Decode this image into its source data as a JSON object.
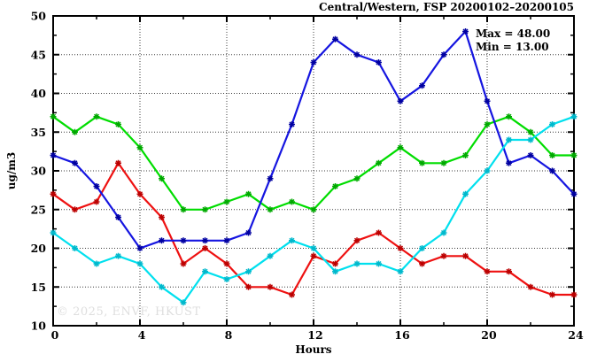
{
  "title": "Central/Western, FSP 20200102–20200105",
  "annotation": {
    "max_label": "Max = 48.00",
    "min_label": "Min = 13.00"
  },
  "watermark": "© 2025, ENVF, HKUST",
  "colors": {
    "foreground": "#000000",
    "background": "#ffffff",
    "grid": "#3a3a3a",
    "watermark_text": "#dedede"
  },
  "chart_data": {
    "type": "line",
    "title": "Central/Western, FSP 20200102–20200105",
    "xlabel": "Hours",
    "ylabel": "ug/m3",
    "xlim": [
      0,
      24
    ],
    "ylim": [
      10,
      50
    ],
    "grid": true,
    "x_major_ticks": [
      0,
      4,
      8,
      12,
      16,
      20,
      24
    ],
    "x_minor_ticks": [
      2,
      6,
      10,
      14,
      18,
      22
    ],
    "y_major_ticks": [
      10,
      15,
      20,
      25,
      30,
      35,
      40,
      45,
      50
    ],
    "y_minor_ticks": [
      12.5,
      17.5,
      22.5,
      27.5,
      32.5,
      37.5,
      42.5,
      47.5
    ],
    "max": 48.0,
    "min": 13.0,
    "x": [
      0,
      1,
      2,
      3,
      4,
      5,
      6,
      7,
      8,
      9,
      10,
      11,
      12,
      13,
      14,
      15,
      16,
      17,
      18,
      19,
      20,
      21,
      22,
      23,
      24
    ],
    "series": [
      {
        "name": "green",
        "color": "#00dd00",
        "marker_color": "#00a800",
        "values": [
          37,
          35,
          37,
          36,
          33,
          29,
          25,
          25,
          26,
          27,
          25,
          26,
          25,
          28,
          29,
          31,
          33,
          31,
          31,
          32,
          36,
          37,
          35,
          32,
          32
        ]
      },
      {
        "name": "red",
        "color": "#ee1111",
        "marker_color": "#bb0000",
        "values": [
          27,
          25,
          26,
          31,
          27,
          24,
          18,
          20,
          18,
          15,
          15,
          14,
          19,
          18,
          21,
          22,
          20,
          18,
          19,
          19,
          17,
          17,
          15,
          14,
          14
        ]
      },
      {
        "name": "blue",
        "color": "#1515e0",
        "marker_color": "#0000a0",
        "values": [
          32,
          31,
          28,
          24,
          20,
          21,
          21,
          21,
          21,
          22,
          29,
          36,
          44,
          47,
          45,
          44,
          39,
          41,
          45,
          48,
          39,
          31,
          32,
          30,
          27
        ]
      },
      {
        "name": "cyan",
        "color": "#00e0ee",
        "marker_color": "#00b8cc",
        "values": [
          22,
          20,
          18,
          19,
          18,
          15,
          13,
          17,
          16,
          17,
          19,
          21,
          20,
          17,
          18,
          18,
          17,
          20,
          22,
          27,
          30,
          34,
          34,
          36,
          37
        ]
      }
    ]
  }
}
